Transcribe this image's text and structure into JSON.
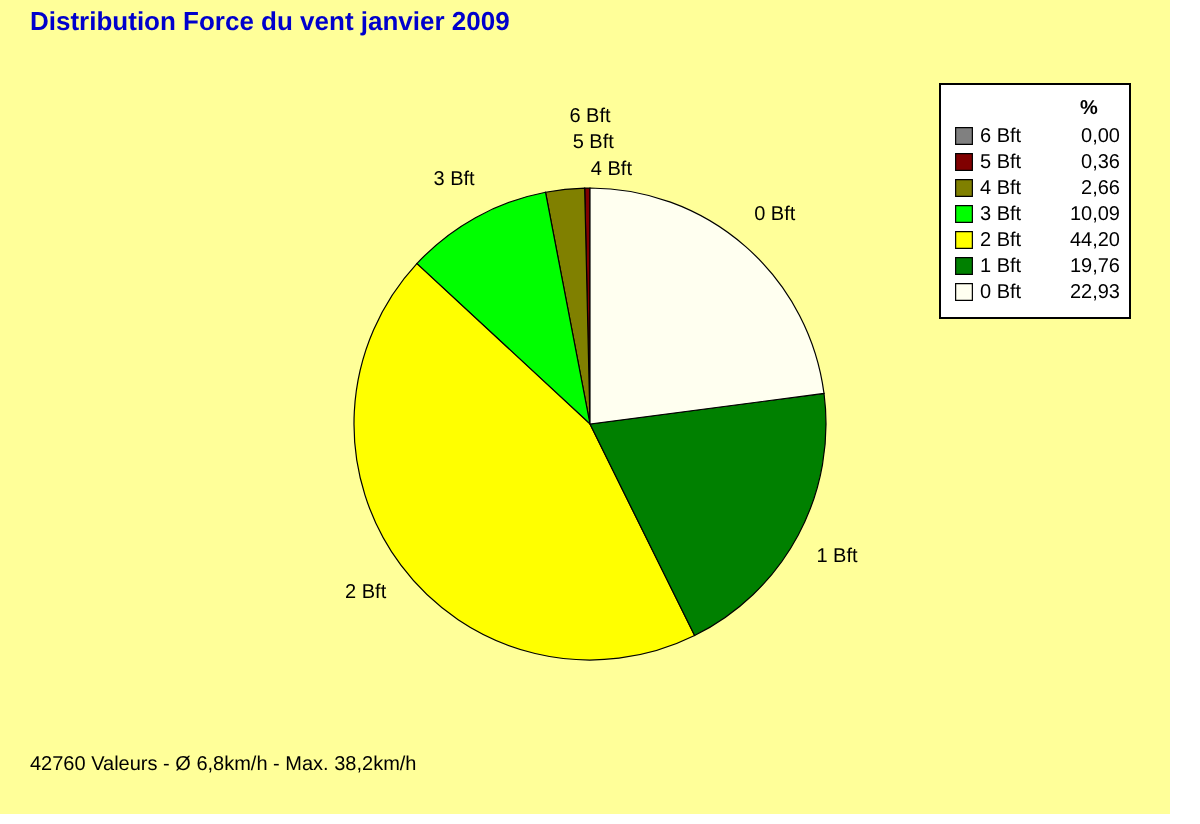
{
  "chart_data": {
    "type": "pie",
    "title": "Distribution Force du vent  janvier 2009",
    "legend_title": "%",
    "categories": [
      "6 Bft",
      "5 Bft",
      "4 Bft",
      "3 Bft",
      "2 Bft",
      "1 Bft",
      "0 Bft"
    ],
    "values": [
      0.0,
      0.36,
      2.66,
      10.09,
      44.2,
      19.76,
      22.93
    ],
    "value_labels": [
      "0,00",
      "0,36",
      "2,66",
      "10,09",
      "44,20",
      "19,76",
      "22,93"
    ],
    "colors": [
      "#808080",
      "#800000",
      "#808000",
      "#00ff00",
      "#ffff00",
      "#008000",
      "#fffff0"
    ],
    "legend": "top right",
    "annotations": [
      "42760 Valeurs   -   Ø 6,8km/h  -  Max. 38,2km/h"
    ]
  }
}
